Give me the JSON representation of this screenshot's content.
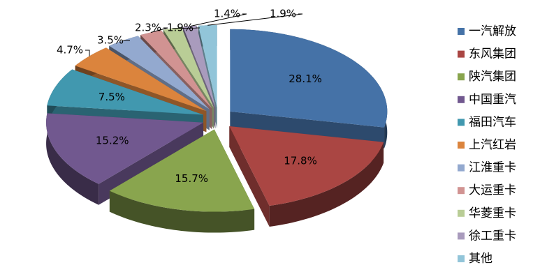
{
  "chart_data": {
    "type": "pie",
    "categories": [
      "一汽解放",
      "东风集团",
      "陕汽集团",
      "中国重汽",
      "福田汽车",
      "上汽红岩",
      "江淮重卡",
      "大运重卡",
      "华菱重卡",
      "徐工重卡",
      "其他"
    ],
    "values": [
      28.1,
      17.8,
      15.7,
      15.2,
      7.5,
      4.7,
      3.5,
      2.3,
      1.9,
      1.4,
      1.9
    ],
    "value_labels": [
      "28.1%",
      "17.8%",
      "15.7%",
      "15.2%",
      "7.5%",
      "4.7%",
      "3.5%",
      "2.3%",
      "1.9%",
      "1.4%",
      "1.9%"
    ],
    "colors": [
      "#4572a7",
      "#aa4643",
      "#89a54e",
      "#71588f",
      "#4198af",
      "#db843d",
      "#93a9cf",
      "#d19392",
      "#b9cd96",
      "#a99bbd",
      "#92c5d9"
    ],
    "legend": "right"
  }
}
